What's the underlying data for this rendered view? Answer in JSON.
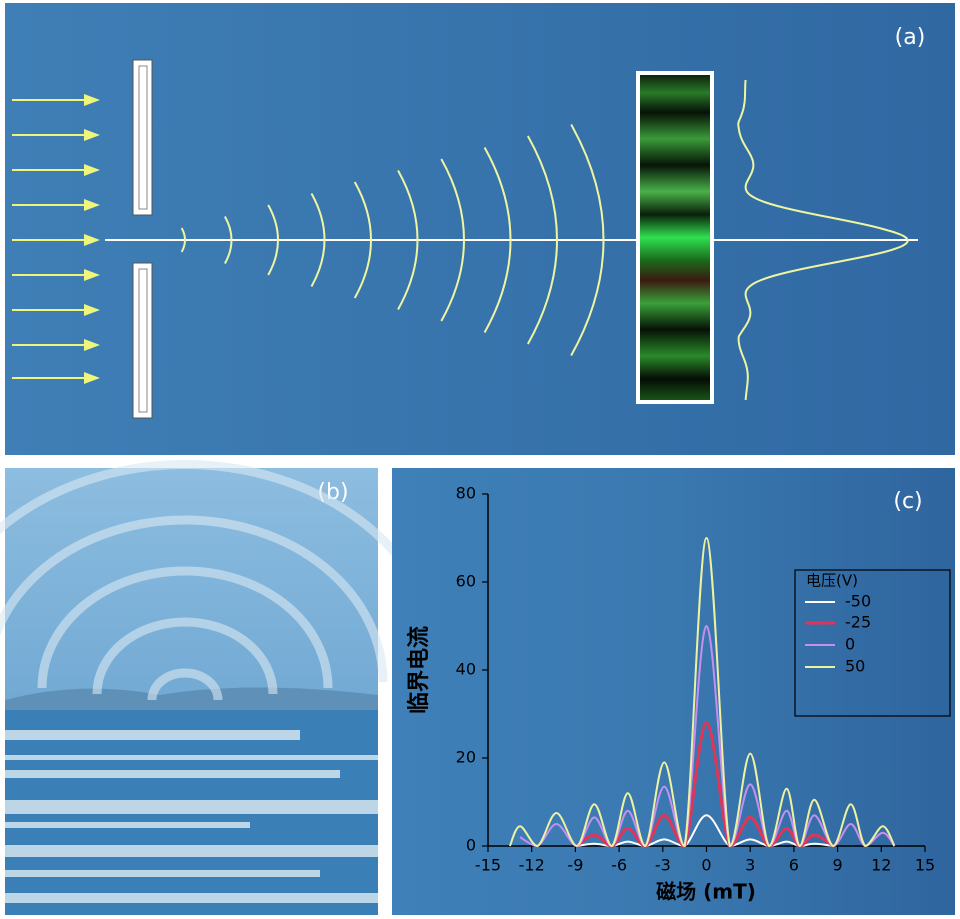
{
  "panels": {
    "a": "(a)",
    "b": "(b)"
  },
  "chart_data": {
    "type": "line",
    "panel_label": "(c)",
    "xlabel": "磁场 (mT)",
    "ylabel": "临界电流",
    "legend_title": "电压(V)",
    "legend_position": "right",
    "x": [
      -13.5,
      -12.8,
      -11.6,
      -10.3,
      -8.9,
      -7.7,
      -6.5,
      -5.4,
      -4.2,
      -2.9,
      -1.5,
      0,
      1.6,
      3.0,
      4.3,
      5.5,
      6.4,
      7.4,
      8.7,
      9.9,
      10.9,
      12.1,
      12.9
    ],
    "xlim": [
      -15,
      15
    ],
    "xticks": [
      -15,
      -12,
      -9,
      -6,
      -3,
      0,
      3,
      6,
      9,
      12,
      15
    ],
    "ylim": [
      0,
      80
    ],
    "yticks": [
      0,
      20,
      40,
      60,
      80
    ],
    "series": [
      {
        "name": "-50",
        "color": "#ffffff",
        "values": [
          null,
          null,
          null,
          null,
          0,
          0.5,
          0,
          1,
          0,
          1.5,
          0,
          7,
          0,
          1.5,
          0,
          1,
          0,
          0.5,
          0,
          null,
          null,
          null,
          null
        ]
      },
      {
        "name": "-25",
        "color": "#e0355a",
        "values": [
          null,
          null,
          null,
          null,
          0,
          2.5,
          0,
          4,
          0,
          7,
          0,
          28,
          0,
          6.5,
          0,
          4,
          0,
          2.5,
          0,
          null,
          null,
          null,
          null
        ]
      },
      {
        "name": "0",
        "color": "#c58ef0",
        "values": [
          null,
          2,
          0,
          5,
          0,
          6.5,
          0,
          8,
          0,
          13.5,
          0,
          50,
          0,
          14,
          0,
          8,
          0,
          7,
          0,
          5,
          0,
          3,
          0
        ]
      },
      {
        "name": "50",
        "color": "#eef2a0",
        "values": [
          0,
          4.5,
          0,
          7.5,
          0,
          9.5,
          0,
          12,
          0,
          19,
          0,
          70,
          0,
          21,
          0,
          13,
          0,
          10.5,
          0,
          9.5,
          0,
          4.5,
          0
        ]
      }
    ]
  }
}
